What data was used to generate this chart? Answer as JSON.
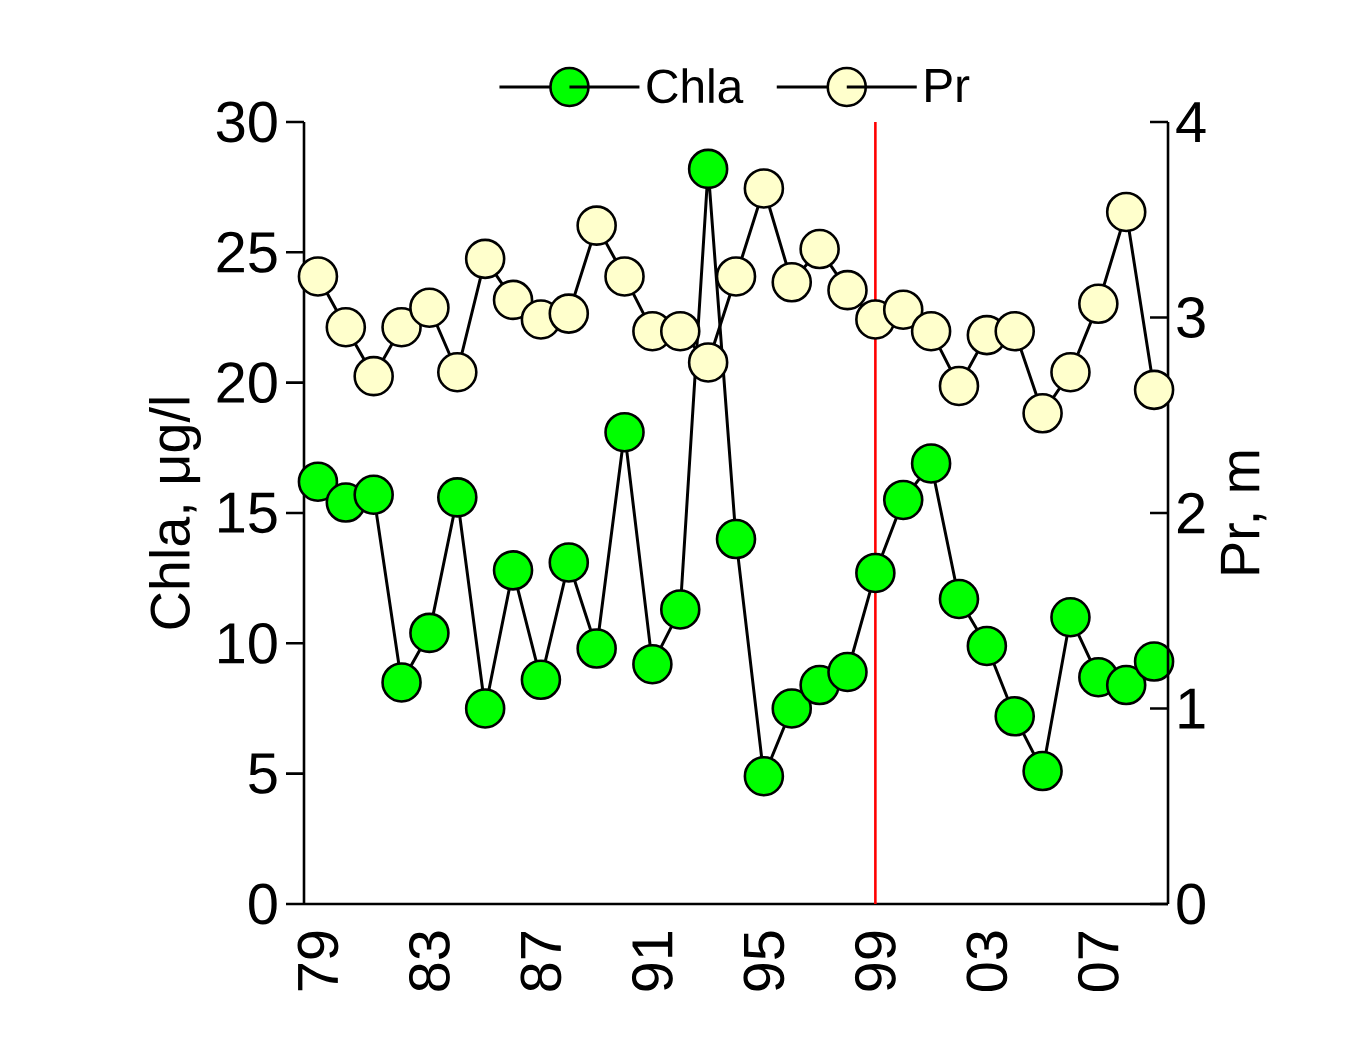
{
  "chart_data": {
    "type": "line",
    "ylabel": "Chla, μg/l",
    "y2label": "Pr, m",
    "legend": "top",
    "marker": "circle",
    "line_style": "solid",
    "categories": [
      "79",
      null,
      null,
      null,
      "83",
      null,
      null,
      null,
      "87",
      null,
      null,
      null,
      "91",
      null,
      null,
      null,
      "95",
      null,
      null,
      null,
      "99",
      null,
      null,
      null,
      "03",
      null,
      null,
      null,
      "07",
      null,
      null
    ],
    "ylim": [
      0,
      30
    ],
    "yticks": [
      0,
      5,
      10,
      15,
      20,
      25,
      30
    ],
    "y2lim": [
      0,
      4
    ],
    "y2ticks": [
      0,
      1,
      2,
      3,
      4
    ],
    "ref_lines": [
      {
        "axis": "x",
        "value": "99",
        "color": "#ff0000"
      }
    ],
    "series": [
      {
        "name": "Chla",
        "color": "#00ff00",
        "values": [
          16.2,
          15.4,
          15.7,
          8.5,
          10.4,
          15.6,
          7.5,
          12.8,
          8.6,
          13.1,
          9.8,
          18.1,
          9.2,
          11.3,
          28.2,
          14.0,
          4.9,
          7.5,
          8.4,
          8.9,
          12.7,
          15.5,
          16.9,
          11.7,
          9.9,
          7.2,
          5.1,
          11.0,
          8.7,
          8.4,
          9.3
        ]
      },
      {
        "name": "Pr",
        "color": "#ffffcc",
        "axis": "y2",
        "values": [
          3.21,
          2.95,
          2.7,
          2.95,
          3.05,
          2.72,
          3.3,
          3.09,
          2.99,
          3.02,
          3.47,
          3.21,
          2.93,
          2.93,
          2.77,
          3.21,
          3.66,
          3.18,
          3.35,
          3.14,
          2.99,
          3.04,
          2.93,
          2.65,
          2.91,
          2.93,
          2.51,
          2.72,
          3.07,
          3.54,
          2.63
        ]
      }
    ]
  }
}
